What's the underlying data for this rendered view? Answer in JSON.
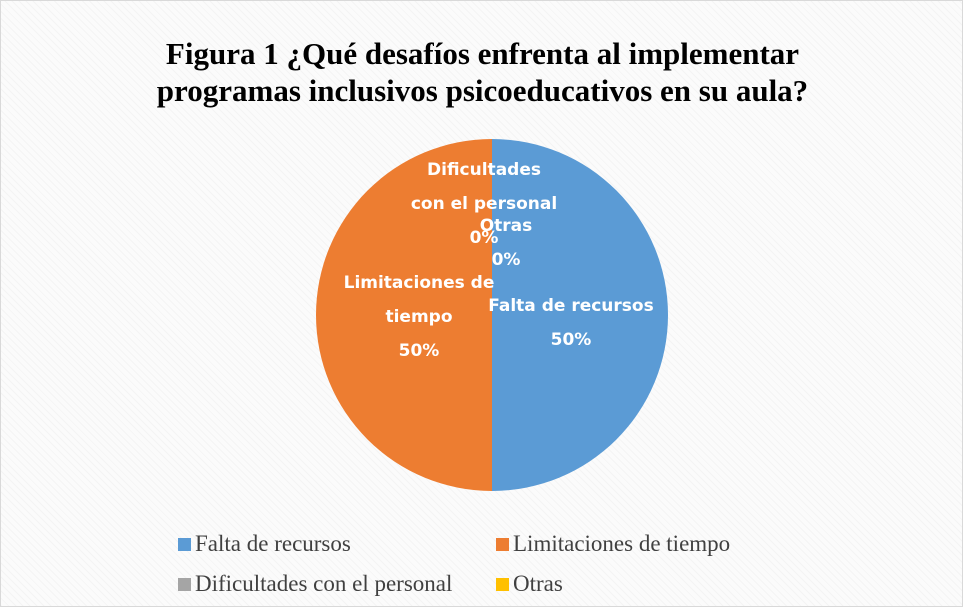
{
  "chart_data": {
    "type": "pie",
    "title": "Figura 1 ¿Qué desafíos enfrenta al implementar programas inclusivos psicoeducativos en su aula?",
    "categories": [
      "Falta de recursos",
      "Limitaciones de tiempo",
      "Dificultades con el personal",
      "Otras"
    ],
    "values": [
      50,
      50,
      0,
      0
    ],
    "value_labels": [
      "50%",
      "50%",
      "0%",
      "0%"
    ],
    "colors": [
      "#5b9bd5",
      "#ed7d31",
      "#a5a5a5",
      "#ffc000"
    ],
    "legend": "bottom"
  }
}
